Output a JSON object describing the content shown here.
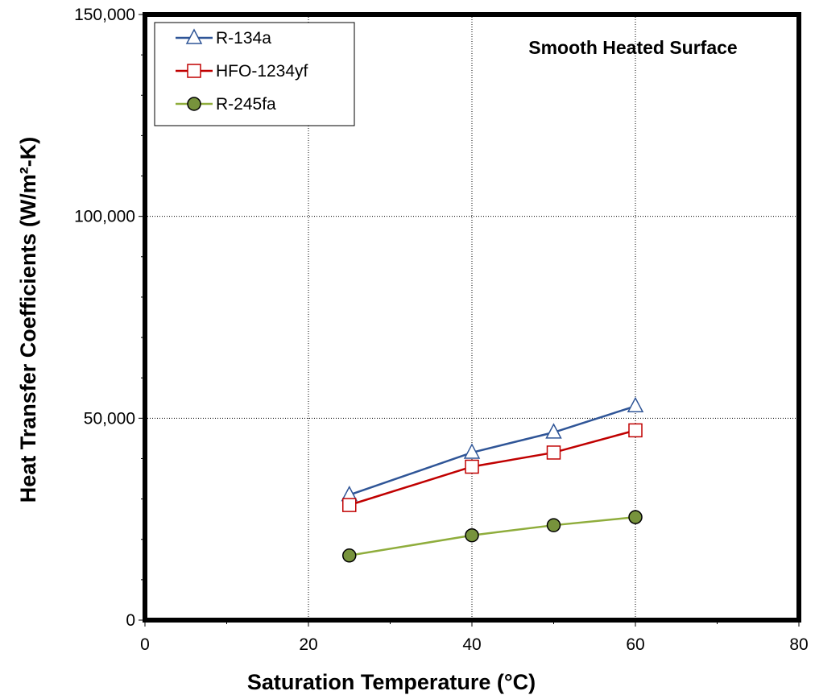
{
  "chart_data": {
    "type": "line",
    "title": "",
    "annotation": "Smooth Heated Surface",
    "xlabel": "Saturation Temperature (°C)",
    "ylabel": "Heat Transfer Coefficients (W/m²-K)",
    "xlim": [
      0,
      80
    ],
    "ylim": [
      0,
      150000
    ],
    "x_ticks": [
      0,
      20,
      40,
      60,
      80
    ],
    "x_tick_labels": [
      "0",
      "20",
      "40",
      "60",
      "80"
    ],
    "y_ticks": [
      0,
      50000,
      100000,
      150000
    ],
    "y_tick_labels": [
      "0",
      "50,000",
      "100,000",
      "150,000"
    ],
    "grid": "dotted",
    "legend_position": "top-left",
    "series": [
      {
        "name": "R-134a",
        "marker": "triangle",
        "color": "#2f5597",
        "x": [
          25,
          40,
          50,
          60
        ],
        "values": [
          31000,
          41500,
          46500,
          53000
        ]
      },
      {
        "name": "HFO-1234yf",
        "marker": "square",
        "color": "#c00000",
        "x": [
          25,
          40,
          50,
          60
        ],
        "values": [
          28500,
          38000,
          41500,
          47000
        ]
      },
      {
        "name": "R-245fa",
        "marker": "circle",
        "color": "#8fad3c",
        "marker_fill": "#77933c",
        "x": [
          25,
          40,
          50,
          60
        ],
        "values": [
          16000,
          21000,
          23500,
          25500
        ]
      }
    ]
  }
}
